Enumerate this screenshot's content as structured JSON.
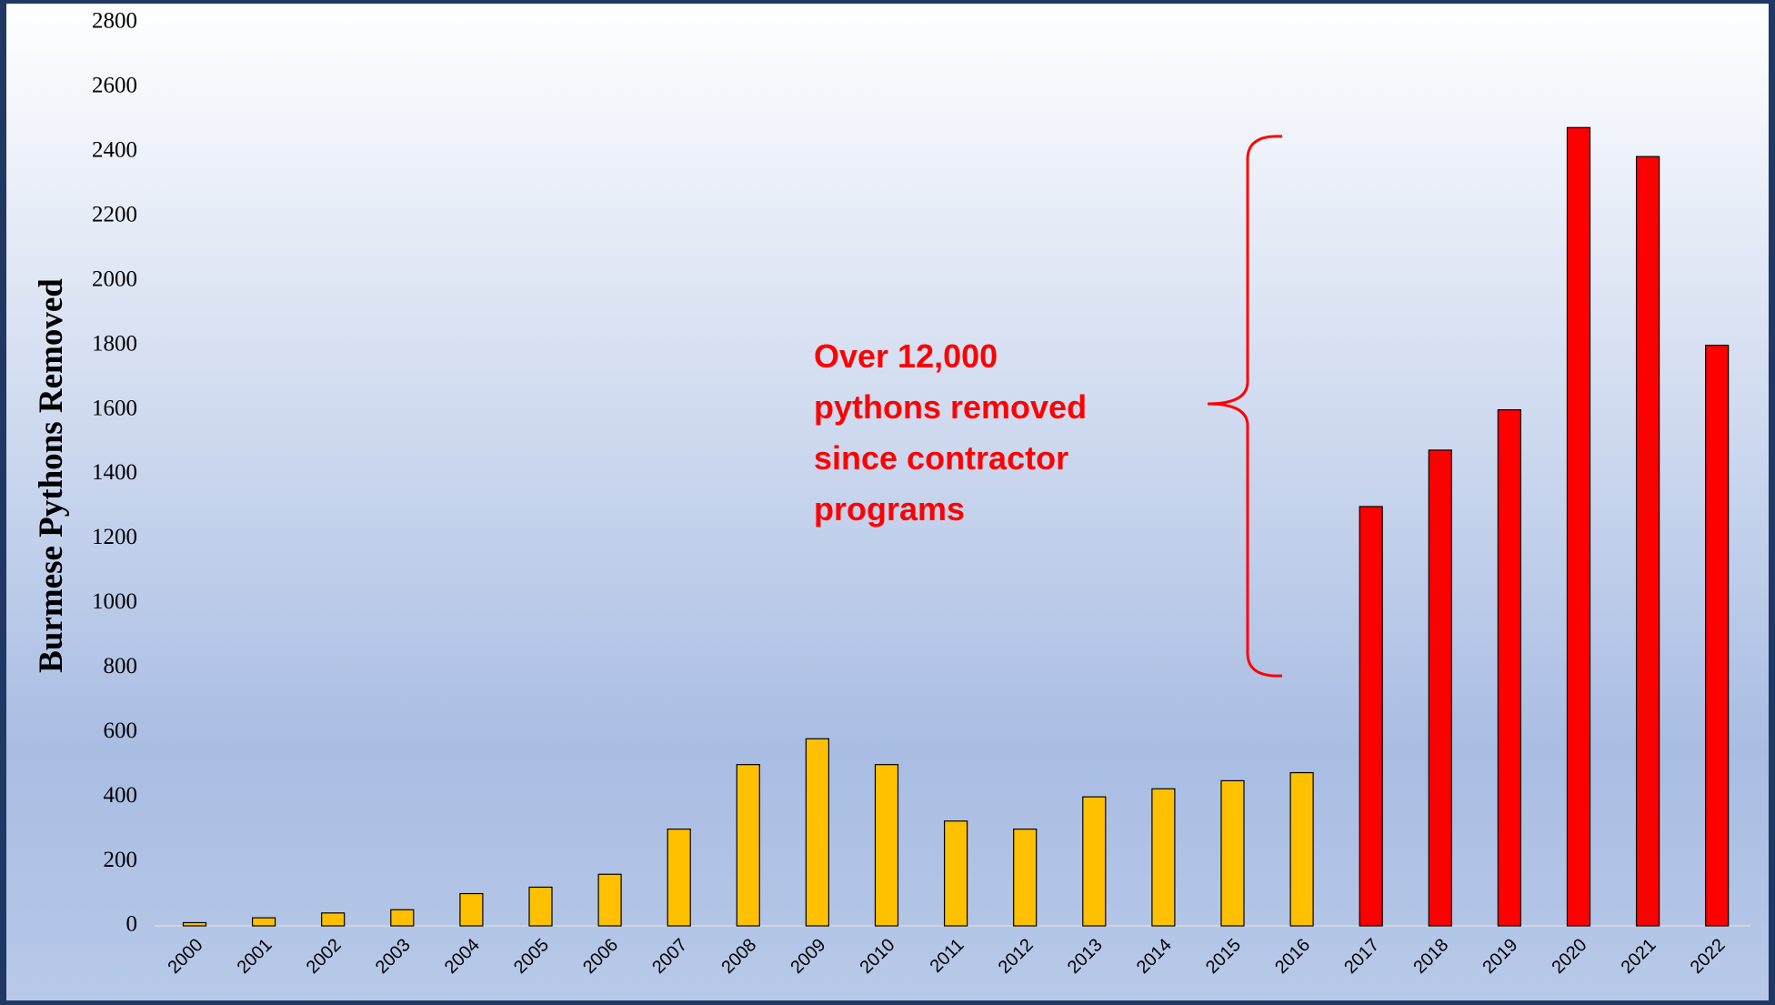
{
  "chart_data": {
    "type": "bar",
    "y_label": "Burmese Pythons Removed",
    "annotation": [
      "Over 12,000",
      "pythons removed",
      "since contractor",
      "programs"
    ],
    "categories": [
      "2000",
      "2001",
      "2002",
      "2003",
      "2004",
      "2005",
      "2006",
      "2007",
      "2008",
      "2009",
      "2010",
      "2011",
      "2012",
      "2013",
      "2014",
      "2015",
      "2016",
      "2017",
      "2018",
      "2019",
      "2020",
      "2021",
      "2022"
    ],
    "values": [
      10,
      25,
      40,
      50,
      100,
      120,
      160,
      300,
      500,
      580,
      500,
      325,
      300,
      400,
      425,
      450,
      475,
      1300,
      1475,
      1600,
      2475,
      2385,
      1800
    ],
    "colors": [
      "#ffc000",
      "#ffc000",
      "#ffc000",
      "#ffc000",
      "#ffc000",
      "#ffc000",
      "#ffc000",
      "#ffc000",
      "#ffc000",
      "#ffc000",
      "#ffc000",
      "#ffc000",
      "#ffc000",
      "#ffc000",
      "#ffc000",
      "#ffc000",
      "#ffc000",
      "#ff0000",
      "#ff0000",
      "#ff0000",
      "#ff0000",
      "#ff0000",
      "#ff0000"
    ],
    "ylim": [
      0,
      2800
    ],
    "yticks": [
      0,
      200,
      400,
      600,
      800,
      1000,
      1200,
      1400,
      1600,
      1800,
      2000,
      2200,
      2400,
      2600,
      2800
    ],
    "grid": false
  }
}
